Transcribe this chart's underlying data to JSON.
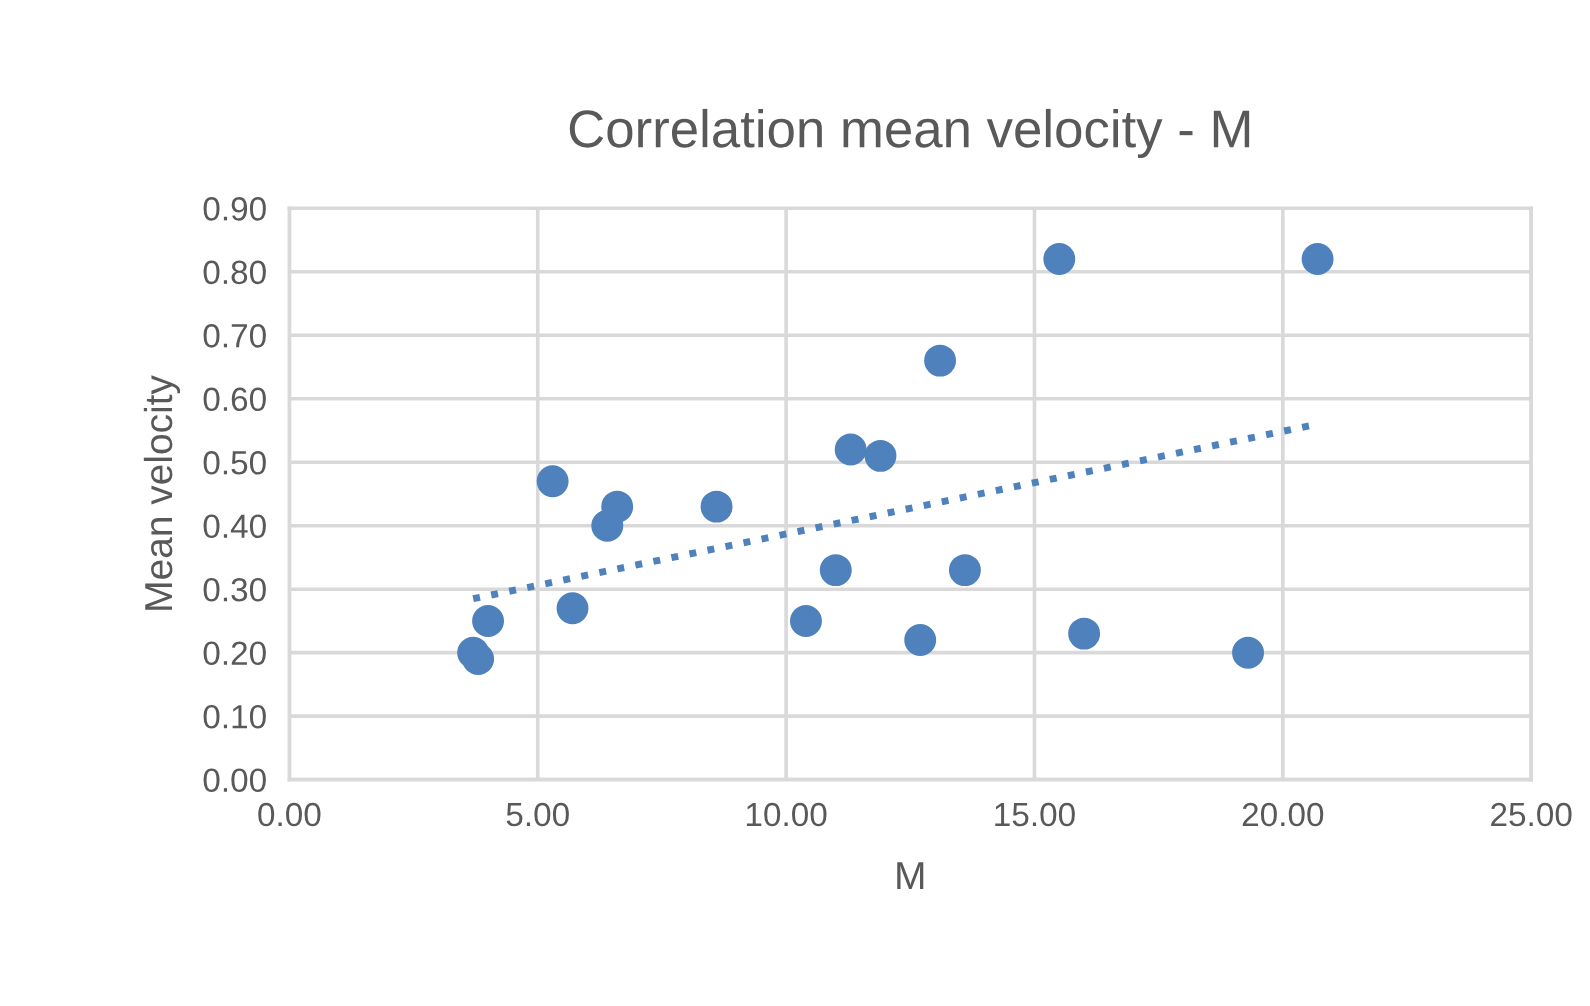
{
  "chart_data": {
    "type": "scatter",
    "title": "Correlation mean velocity - M",
    "xlabel": "M",
    "ylabel": "Mean velocity",
    "series": [
      {
        "color": "#4f81bd",
        "marker": "circle",
        "x": [
          3.7,
          3.8,
          4.0,
          5.3,
          5.7,
          6.4,
          6.6,
          8.6,
          10.4,
          11.0,
          11.3,
          11.9,
          12.7,
          13.1,
          13.6,
          15.5,
          16.0,
          19.3,
          20.7
        ],
        "values": [
          0.2,
          0.19,
          0.25,
          0.47,
          0.27,
          0.4,
          0.43,
          0.43,
          0.25,
          0.33,
          0.52,
          0.51,
          0.22,
          0.66,
          0.33,
          0.82,
          0.23,
          0.2,
          0.82
        ]
      },
      {
        "type": "line",
        "color": "#4f81bd",
        "line_style": "dotted",
        "x": [
          3.7,
          20.7
        ],
        "values": [
          0.285,
          0.56
        ]
      }
    ],
    "xlim": [
      0,
      25
    ],
    "ylim": [
      0,
      0.9
    ],
    "xticks": [
      {
        "value": 0,
        "label": "0.00"
      },
      {
        "value": 5,
        "label": "5.00"
      },
      {
        "value": 10,
        "label": "10.00"
      },
      {
        "value": 15,
        "label": "15.00"
      },
      {
        "value": 20,
        "label": "20.00"
      },
      {
        "value": 25,
        "label": "25.00"
      }
    ],
    "yticks": [
      {
        "value": 0,
        "label": "0.00"
      },
      {
        "value": 0.1,
        "label": "0.10"
      },
      {
        "value": 0.2,
        "label": "0.20"
      },
      {
        "value": 0.3,
        "label": "0.30"
      },
      {
        "value": 0.4,
        "label": "0.40"
      },
      {
        "value": 0.5,
        "label": "0.50"
      },
      {
        "value": 0.6,
        "label": "0.60"
      },
      {
        "value": 0.7,
        "label": "0.70"
      },
      {
        "value": 0.8,
        "label": "0.80"
      },
      {
        "value": 0.9,
        "label": "0.90"
      }
    ],
    "grid": true
  }
}
